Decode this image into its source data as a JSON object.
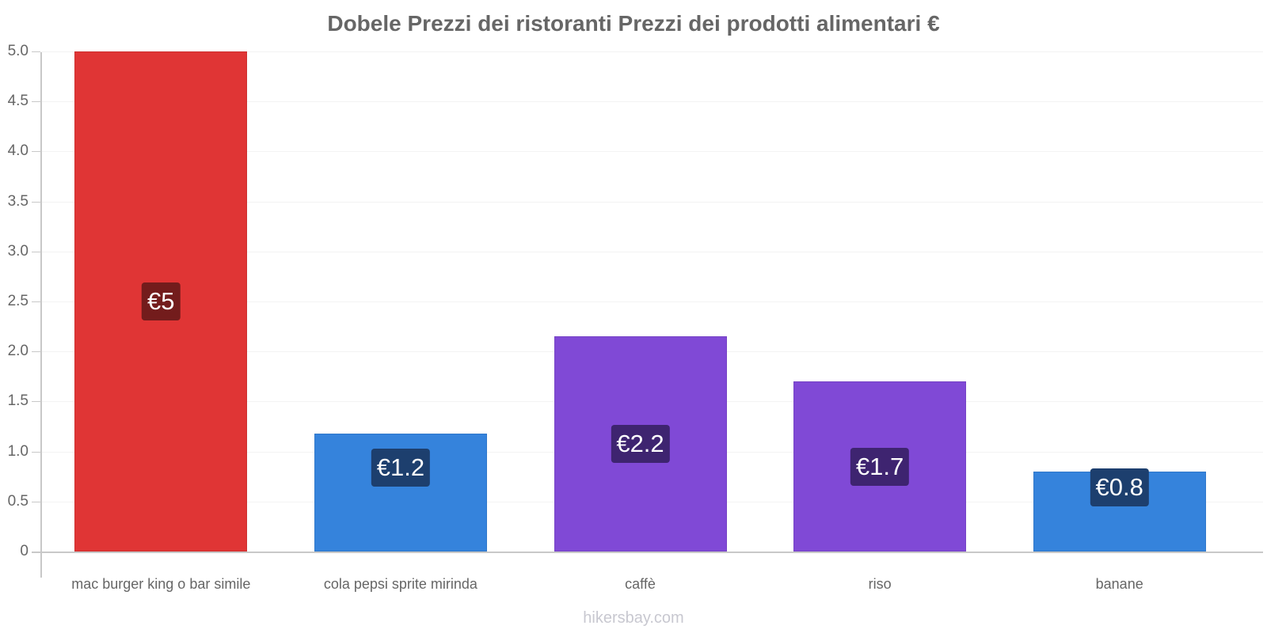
{
  "chart_data": {
    "type": "bar",
    "title": "Dobele Prezzi dei ristoranti Prezzi dei prodotti alimentari €",
    "xlabel": "",
    "ylabel": "",
    "ylim": [
      0,
      5.0
    ],
    "yticks": [
      "0",
      "0.5",
      "1.0",
      "1.5",
      "2.0",
      "2.5",
      "3.0",
      "3.5",
      "4.0",
      "4.5",
      "5.0"
    ],
    "grid": true,
    "legend": null,
    "categories": [
      "mac burger king o bar simile",
      "cola pepsi sprite mirinda",
      "caffè",
      "riso",
      "banane"
    ],
    "values": [
      5.0,
      1.18,
      2.15,
      1.7,
      0.8
    ],
    "data_labels": [
      "€5",
      "€1.2",
      "€2.2",
      "€1.7",
      "€0.8"
    ],
    "bar_colors": [
      "#e03535",
      "#3583dc",
      "#8049d6",
      "#8049d6",
      "#3583dc"
    ],
    "label_bg_colors": [
      "#731c1c",
      "#1d3f6e",
      "#3e2470",
      "#3e2470",
      "#1d3f6e"
    ]
  },
  "watermark": "hikersbay.com"
}
